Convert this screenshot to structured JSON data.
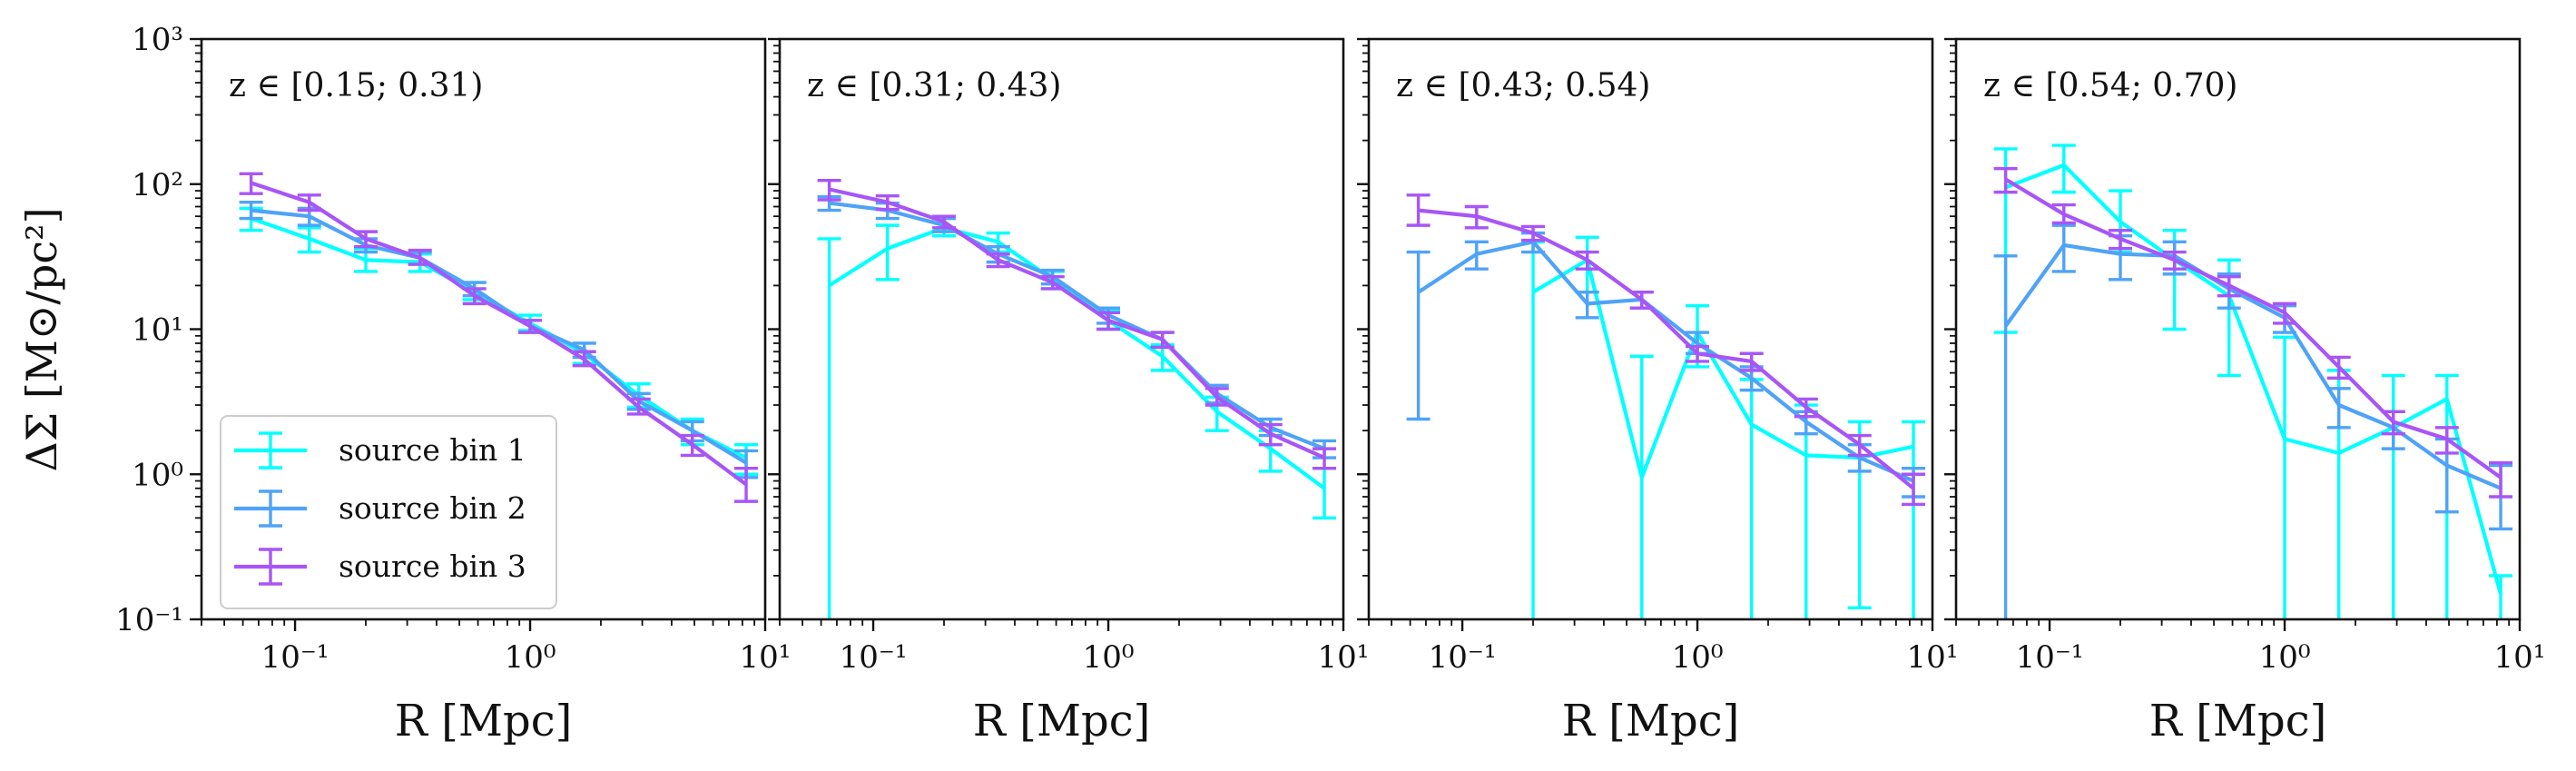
{
  "figure": {
    "ylabel": "ΔΣ [M⊙/pc²]",
    "xlabel": "R [Mpc]"
  },
  "legend": {
    "entries": [
      "source bin 1",
      "source bin 2",
      "source bin 3"
    ]
  },
  "colors": {
    "source bin 1": "#00ffff",
    "source bin 2": "#4fa3f7",
    "source bin 3": "#a855f7"
  },
  "chart_data": [
    {
      "type": "line",
      "annotation": "z ∈ [0.15; 0.31)",
      "xscale": "log",
      "yscale": "log",
      "xlim": [
        0.04,
        10
      ],
      "ylim": [
        0.1,
        1000
      ],
      "x_tick_labels": [
        "10⁻¹",
        "10⁰",
        "10¹"
      ],
      "y_tick_labels": [
        "10⁻¹",
        "10⁰",
        "10¹",
        "10²",
        "10³"
      ],
      "series": [
        {
          "name": "source bin 1",
          "x": [
            0.065,
            0.115,
            0.2,
            0.34,
            0.58,
            1.0,
            1.7,
            2.9,
            4.9,
            8.3
          ],
          "y": [
            58,
            42,
            30,
            29,
            18,
            11,
            6.8,
            3.5,
            2.0,
            1.3
          ],
          "err_lo": [
            48,
            34,
            25,
            25,
            16,
            9.8,
            5.8,
            2.9,
            1.6,
            1.0
          ],
          "err_hi": [
            68,
            50,
            36,
            33,
            21,
            12.5,
            8.0,
            4.2,
            2.4,
            1.6
          ]
        },
        {
          "name": "source bin 2",
          "x": [
            0.065,
            0.115,
            0.2,
            0.34,
            0.58,
            1.0,
            1.7,
            2.9,
            4.9,
            8.3
          ],
          "y": [
            66,
            60,
            38,
            31,
            19,
            10.5,
            7.2,
            3.2,
            2.0,
            1.2
          ],
          "err_lo": [
            58,
            52,
            34,
            28,
            17,
            9.5,
            6.4,
            2.8,
            1.7,
            0.95
          ],
          "err_hi": [
            75,
            68,
            42,
            34,
            21,
            11.5,
            8.0,
            3.6,
            2.3,
            1.45
          ]
        },
        {
          "name": "source bin 3",
          "x": [
            0.065,
            0.115,
            0.2,
            0.34,
            0.58,
            1.0,
            1.7,
            2.9,
            4.9,
            8.3
          ],
          "y": [
            102,
            75,
            42,
            31,
            17,
            10.5,
            6.2,
            2.9,
            1.6,
            0.85
          ],
          "err_lo": [
            86,
            66,
            37,
            28,
            15,
            9.5,
            5.6,
            2.6,
            1.35,
            0.65
          ],
          "err_hi": [
            118,
            84,
            47,
            35,
            19,
            11.5,
            7.0,
            3.3,
            1.85,
            1.1
          ]
        }
      ]
    },
    {
      "type": "line",
      "annotation": "z ∈ [0.31; 0.43)",
      "xscale": "log",
      "yscale": "log",
      "xlim": [
        0.04,
        10
      ],
      "ylim": [
        0.1,
        1000
      ],
      "x_tick_labels": [
        "10⁻¹",
        "10⁰",
        "10¹"
      ],
      "series": [
        {
          "name": "source bin 1",
          "x": [
            0.065,
            0.115,
            0.2,
            0.34,
            0.58,
            1.0,
            1.7,
            2.9,
            4.9,
            8.3
          ],
          "y": [
            20,
            36,
            50,
            40,
            22,
            11.5,
            6.5,
            2.7,
            1.5,
            0.8
          ],
          "err_lo": [
            0.1,
            22,
            44,
            34,
            19,
            10,
            5.2,
            2.0,
            1.05,
            0.5
          ],
          "err_hi": [
            42,
            52,
            58,
            46,
            25,
            13.5,
            7.8,
            3.4,
            2.0,
            1.1
          ]
        },
        {
          "name": "source bin 2",
          "x": [
            0.065,
            0.115,
            0.2,
            0.34,
            0.58,
            1.0,
            1.7,
            2.9,
            4.9,
            8.3
          ],
          "y": [
            74,
            66,
            52,
            33,
            23,
            12.5,
            8.5,
            3.6,
            2.1,
            1.5
          ],
          "err_lo": [
            66,
            58,
            47,
            29,
            20.5,
            11,
            7.5,
            3.1,
            1.85,
            1.3
          ],
          "err_hi": [
            82,
            74,
            58,
            37,
            25.5,
            14,
            9.5,
            4.1,
            2.4,
            1.7
          ]
        },
        {
          "name": "source bin 3",
          "x": [
            0.065,
            0.115,
            0.2,
            0.34,
            0.58,
            1.0,
            1.7,
            2.9,
            4.9,
            8.3
          ],
          "y": [
            92,
            75,
            55,
            30,
            21,
            11.5,
            8.5,
            3.4,
            1.9,
            1.3
          ],
          "err_lo": [
            78,
            67,
            50,
            27,
            19,
            10,
            7.5,
            3.0,
            1.6,
            1.1
          ],
          "err_hi": [
            106,
            83,
            60,
            33,
            23,
            13,
            9.5,
            3.9,
            2.2,
            1.5
          ]
        }
      ]
    },
    {
      "type": "line",
      "annotation": "z ∈ [0.43; 0.54)",
      "xscale": "log",
      "yscale": "log",
      "xlim": [
        0.04,
        10
      ],
      "ylim": [
        0.1,
        1000
      ],
      "x_tick_labels": [
        "10⁻¹",
        "10⁰",
        "10¹"
      ],
      "series": [
        {
          "name": "source bin 1",
          "x": [
            0.2,
            0.34,
            0.58,
            1.0,
            1.7,
            2.9,
            4.9,
            8.3
          ],
          "y": [
            18,
            30,
            0.95,
            9.5,
            2.2,
            1.35,
            1.3,
            1.55
          ],
          "err_lo": [
            0.1,
            18,
            0.1,
            5.5,
            0.1,
            0.1,
            0.12,
            0.1
          ],
          "err_hi": [
            40,
            43,
            6.5,
            14.5,
            4.5,
            3.0,
            2.3,
            2.3
          ]
        },
        {
          "name": "source bin 2",
          "x": [
            0.065,
            0.115,
            0.2,
            0.34,
            0.58,
            1.0,
            1.7,
            2.9,
            4.9,
            8.3
          ],
          "y": [
            18,
            33,
            40,
            15,
            16,
            8,
            4.6,
            2.3,
            1.3,
            0.9
          ],
          "err_lo": [
            2.4,
            26,
            34,
            12,
            14,
            6.8,
            3.8,
            1.9,
            1.05,
            0.7
          ],
          "err_hi": [
            34,
            40,
            46,
            18,
            18,
            9.5,
            5.5,
            2.7,
            1.6,
            1.1
          ]
        },
        {
          "name": "source bin 3",
          "x": [
            0.065,
            0.115,
            0.2,
            0.34,
            0.58,
            1.0,
            1.7,
            2.9,
            4.9,
            8.3
          ],
          "y": [
            66,
            60,
            46,
            30,
            16,
            6.8,
            6.0,
            2.9,
            1.6,
            0.8
          ],
          "err_lo": [
            52,
            50,
            41,
            26,
            14,
            6.0,
            5.2,
            2.5,
            1.35,
            0.62
          ],
          "err_hi": [
            84,
            70,
            51,
            34,
            18,
            7.6,
            6.8,
            3.3,
            1.85,
            1.0
          ]
        }
      ]
    },
    {
      "type": "line",
      "annotation": "z ∈ [0.54; 0.70)",
      "xscale": "log",
      "yscale": "log",
      "xlim": [
        0.04,
        10
      ],
      "ylim": [
        0.1,
        1000
      ],
      "x_tick_labels": [
        "10⁻¹",
        "10⁰",
        "10¹"
      ],
      "series": [
        {
          "name": "source bin 1",
          "x": [
            0.065,
            0.115,
            0.2,
            0.34,
            0.58,
            1.0,
            1.7,
            2.9,
            4.9,
            8.3
          ],
          "y": [
            95,
            135,
            55,
            30,
            17,
            1.75,
            1.4,
            2.1,
            3.3,
            0.15
          ],
          "err_lo": [
            9.5,
            88,
            34,
            10,
            4.8,
            0.1,
            0.1,
            0.1,
            0.1,
            0.1
          ],
          "err_hi": [
            175,
            185,
            90,
            48,
            30,
            8.8,
            5.2,
            4.8,
            4.8,
            0.2
          ]
        },
        {
          "name": "source bin 2",
          "x": [
            0.065,
            0.115,
            0.2,
            0.34,
            0.58,
            1.0,
            1.7,
            2.9,
            4.9,
            8.3
          ],
          "y": [
            10.5,
            38,
            33,
            32,
            19,
            12,
            3.0,
            2.1,
            1.15,
            0.8
          ],
          "err_lo": [
            0.1,
            25,
            22,
            24,
            14,
            9.5,
            2.1,
            1.5,
            0.55,
            0.42
          ],
          "err_hi": [
            32,
            52,
            44,
            40,
            24,
            14.5,
            3.9,
            2.7,
            1.75,
            1.15
          ]
        },
        {
          "name": "source bin 3",
          "x": [
            0.065,
            0.115,
            0.2,
            0.34,
            0.58,
            1.0,
            1.7,
            2.9,
            4.9,
            8.3
          ],
          "y": [
            108,
            62,
            42,
            30,
            20,
            13,
            5.5,
            2.3,
            1.75,
            0.95
          ],
          "err_lo": [
            88,
            54,
            36,
            26,
            17,
            11,
            4.6,
            1.9,
            1.4,
            0.7
          ],
          "err_hi": [
            128,
            72,
            48,
            34,
            23,
            15,
            6.4,
            2.7,
            2.1,
            1.2
          ]
        }
      ]
    }
  ]
}
